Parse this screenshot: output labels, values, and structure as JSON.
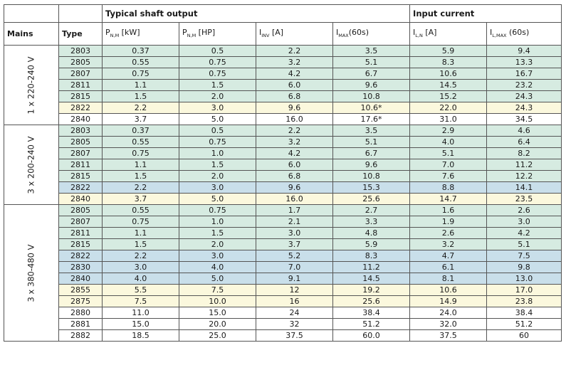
{
  "header": {
    "group_output": "Typical shaft output",
    "group_input": "Input current",
    "mains": "Mains",
    "type": "Type",
    "columns": [
      {
        "main": "P",
        "sub": "N,M",
        "rest": " [kW]"
      },
      {
        "main": "P",
        "sub": "N,M",
        "rest": " [HP]"
      },
      {
        "main": "I",
        "sub": "INV",
        "rest": " [A]"
      },
      {
        "main": "I",
        "sub": "MAX",
        "rest": "(60s)"
      },
      {
        "main": "I",
        "sub": "L,N",
        "rest": " [A]"
      },
      {
        "main": "I",
        "sub": "L,MAX",
        "rest": " (60s)"
      }
    ]
  },
  "groups": [
    {
      "mains": "1 x 220-240 V",
      "rows": [
        {
          "type": "2803",
          "kw": "0.37",
          "hp": "0.5",
          "iinv": "2.2",
          "imax": "3.5",
          "iln": "5.9",
          "ilmax": "9.4",
          "color": "green"
        },
        {
          "type": "2805",
          "kw": "0.55",
          "hp": "0.75",
          "iinv": "3.2",
          "imax": "5.1",
          "iln": "8.3",
          "ilmax": "13.3",
          "color": "green"
        },
        {
          "type": "2807",
          "kw": "0.75",
          "hp": "0.75",
          "iinv": "4.2",
          "imax": "6.7",
          "iln": "10.6",
          "ilmax": "16.7",
          "color": "green"
        },
        {
          "type": "2811",
          "kw": "1.1",
          "hp": "1.5",
          "iinv": "6.0",
          "imax": "9.6",
          "iln": "14.5",
          "ilmax": "23.2",
          "color": "green"
        },
        {
          "type": "2815",
          "kw": "1.5",
          "hp": "2.0",
          "iinv": "6.8",
          "imax": "10.8",
          "iln": "15.2",
          "ilmax": "24.3",
          "color": "green"
        },
        {
          "type": "2822",
          "kw": "2.2",
          "hp": "3.0",
          "iinv": "9.6",
          "imax": "10.6*",
          "iln": "22.0",
          "ilmax": "24.3",
          "color": "yellow"
        },
        {
          "type": "2840",
          "kw": "3.7",
          "hp": "5.0",
          "iinv": "16.0",
          "imax": "17.6*",
          "iln": "31.0",
          "ilmax": "34.5",
          "color": "white"
        }
      ]
    },
    {
      "mains": "3 x 200-240 V",
      "rows": [
        {
          "type": "2803",
          "kw": "0.37",
          "hp": "0.5",
          "iinv": "2.2",
          "imax": "3.5",
          "iln": "2.9",
          "ilmax": "4.6",
          "color": "green"
        },
        {
          "type": "2805",
          "kw": "0.55",
          "hp": "0.75",
          "iinv": "3.2",
          "imax": "5.1",
          "iln": "4.0",
          "ilmax": "6.4",
          "color": "green"
        },
        {
          "type": "2807",
          "kw": "0.75",
          "hp": "1.0",
          "iinv": "4.2",
          "imax": "6.7",
          "iln": "5.1",
          "ilmax": "8.2",
          "color": "green"
        },
        {
          "type": "2811",
          "kw": "1.1",
          "hp": "1.5",
          "iinv": "6.0",
          "imax": "9.6",
          "iln": "7.0",
          "ilmax": "11.2",
          "color": "green"
        },
        {
          "type": "2815",
          "kw": "1.5",
          "hp": "2.0",
          "iinv": "6.8",
          "imax": "10.8",
          "iln": "7.6",
          "ilmax": "12.2",
          "color": "green"
        },
        {
          "type": "2822",
          "kw": "2.2",
          "hp": "3.0",
          "iinv": "9.6",
          "imax": "15.3",
          "iln": "8.8",
          "ilmax": "14.1",
          "color": "blue"
        },
        {
          "type": "2840",
          "kw": "3.7",
          "hp": "5.0",
          "iinv": "16.0",
          "imax": "25.6",
          "iln": "14.7",
          "ilmax": "23.5",
          "color": "yellow"
        }
      ]
    },
    {
      "mains": "3 x 380-480 V",
      "rows": [
        {
          "type": "2805",
          "kw": "0.55",
          "hp": "0.75",
          "iinv": "1.7",
          "imax": "2.7",
          "iln": "1.6",
          "ilmax": "2.6",
          "color": "green"
        },
        {
          "type": "2807",
          "kw": "0.75",
          "hp": "1.0",
          "iinv": "2.1",
          "imax": "3.3",
          "iln": "1.9",
          "ilmax": "3.0",
          "color": "green"
        },
        {
          "type": "2811",
          "kw": "1.1",
          "hp": "1.5",
          "iinv": "3.0",
          "imax": "4.8",
          "iln": "2.6",
          "ilmax": "4.2",
          "color": "green"
        },
        {
          "type": "2815",
          "kw": "1.5",
          "hp": "2.0",
          "iinv": "3.7",
          "imax": "5.9",
          "iln": "3.2",
          "ilmax": "5.1",
          "color": "green"
        },
        {
          "type": "2822",
          "kw": "2.2",
          "hp": "3.0",
          "iinv": "5.2",
          "imax": "8.3",
          "iln": "4.7",
          "ilmax": "7.5",
          "color": "blue"
        },
        {
          "type": "2830",
          "kw": "3.0",
          "hp": "4.0",
          "iinv": "7.0",
          "imax": "11.2",
          "iln": "6.1",
          "ilmax": "9.8",
          "color": "blue"
        },
        {
          "type": "2840",
          "kw": "4.0",
          "hp": "5.0",
          "iinv": "9.1",
          "imax": "14.5",
          "iln": "8.1",
          "ilmax": "13.0",
          "color": "blue"
        },
        {
          "type": "2855",
          "kw": "5.5",
          "hp": "7.5",
          "iinv": "12",
          "imax": "19.2",
          "iln": "10.6",
          "ilmax": "17.0",
          "color": "yellow"
        },
        {
          "type": "2875",
          "kw": "7.5",
          "hp": "10.0",
          "iinv": "16",
          "imax": "25.6",
          "iln": "14.9",
          "ilmax": "23.8",
          "color": "yellow"
        },
        {
          "type": "2880",
          "kw": "11.0",
          "hp": "15.0",
          "iinv": "24",
          "imax": "38.4",
          "iln": "24.0",
          "ilmax": "38.4",
          "color": "white"
        },
        {
          "type": "2881",
          "kw": "15.0",
          "hp": "20.0",
          "iinv": "32",
          "imax": "51.2",
          "iln": "32.0",
          "ilmax": "51.2",
          "color": "white"
        },
        {
          "type": "2882",
          "kw": "18.5",
          "hp": "25.0",
          "iinv": "37.5",
          "imax": "60.0",
          "iln": "37.5",
          "ilmax": "60",
          "color": "white"
        }
      ]
    }
  ]
}
